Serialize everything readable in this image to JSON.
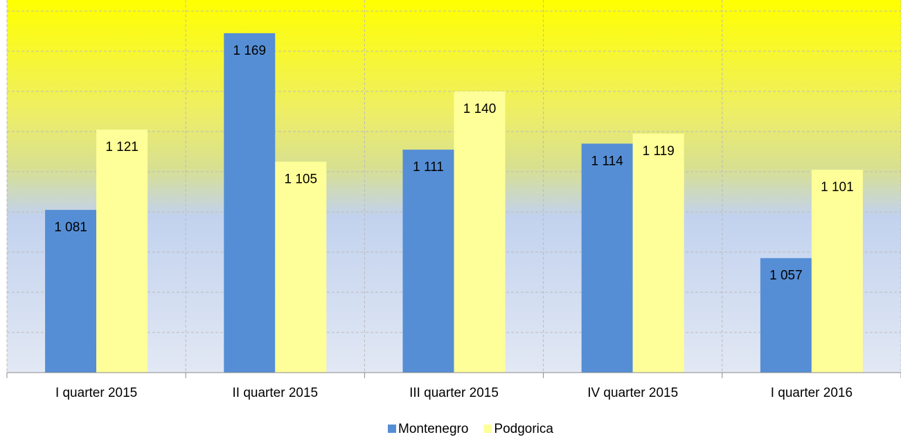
{
  "chart_data": {
    "type": "bar",
    "categories": [
      "I quarter 2015",
      "II quarter 2015",
      "III quarter 2015",
      "IV quarter 2015",
      "I quarter 2016"
    ],
    "series": [
      {
        "name": "Montenegro",
        "color": "#558ed5",
        "values": [
          1081,
          1169,
          1111,
          1114,
          1057
        ],
        "value_labels": [
          "1 081",
          "1 169",
          "1 111",
          "1 114",
          "1 057"
        ]
      },
      {
        "name": "Podgorica",
        "color": "#ffff99",
        "values": [
          1121,
          1105,
          1140,
          1119,
          1101
        ],
        "value_labels": [
          "1 121",
          "1 105",
          "1 140",
          "1 119",
          "1 101"
        ]
      }
    ],
    "ylim": [
      1000,
      1180
    ],
    "yticks": [
      1000,
      1020,
      1040,
      1060,
      1080,
      1100,
      1120,
      1140,
      1160,
      1180
    ],
    "grid": true,
    "legend": "bottom"
  }
}
